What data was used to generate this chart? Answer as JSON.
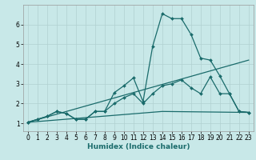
{
  "title": "",
  "xlabel": "Humidex (Indice chaleur)",
  "ylabel": "",
  "bg_color": "#c8e8e8",
  "line_color": "#1a6b6b",
  "grid_color": "#b0d0d0",
  "xlim": [
    -0.5,
    23.5
  ],
  "ylim": [
    0.6,
    7.0
  ],
  "xticks": [
    0,
    1,
    2,
    3,
    4,
    5,
    6,
    7,
    8,
    9,
    10,
    11,
    12,
    13,
    14,
    15,
    16,
    17,
    18,
    19,
    20,
    21,
    22,
    23
  ],
  "yticks": [
    1,
    2,
    3,
    4,
    5,
    6
  ],
  "line1_x": [
    0,
    1,
    2,
    3,
    4,
    5,
    6,
    7,
    8,
    9,
    10,
    11,
    12,
    13,
    14,
    15,
    16,
    17,
    18,
    19,
    20,
    21,
    22,
    23
  ],
  "line1_y": [
    1.05,
    1.2,
    1.35,
    1.6,
    1.5,
    1.2,
    1.2,
    1.6,
    1.6,
    2.55,
    2.9,
    3.3,
    2.1,
    4.9,
    6.55,
    6.3,
    6.3,
    5.5,
    4.3,
    4.2,
    3.4,
    2.5,
    1.6,
    1.55
  ],
  "line2_x": [
    0,
    1,
    2,
    3,
    4,
    5,
    6,
    7,
    8,
    9,
    10,
    11,
    12,
    13,
    14,
    15,
    16,
    17,
    18,
    19,
    20,
    21,
    22,
    23
  ],
  "line2_y": [
    1.05,
    1.2,
    1.35,
    1.6,
    1.5,
    1.2,
    1.2,
    1.6,
    1.6,
    2.0,
    2.3,
    2.5,
    2.0,
    2.5,
    2.9,
    3.0,
    3.2,
    2.8,
    2.5,
    3.35,
    2.5,
    2.5,
    1.6,
    1.55
  ],
  "line3_x": [
    0,
    23
  ],
  "line3_y": [
    1.05,
    4.2
  ],
  "line4_x": [
    0,
    14,
    23
  ],
  "line4_y": [
    1.05,
    1.6,
    1.55
  ]
}
